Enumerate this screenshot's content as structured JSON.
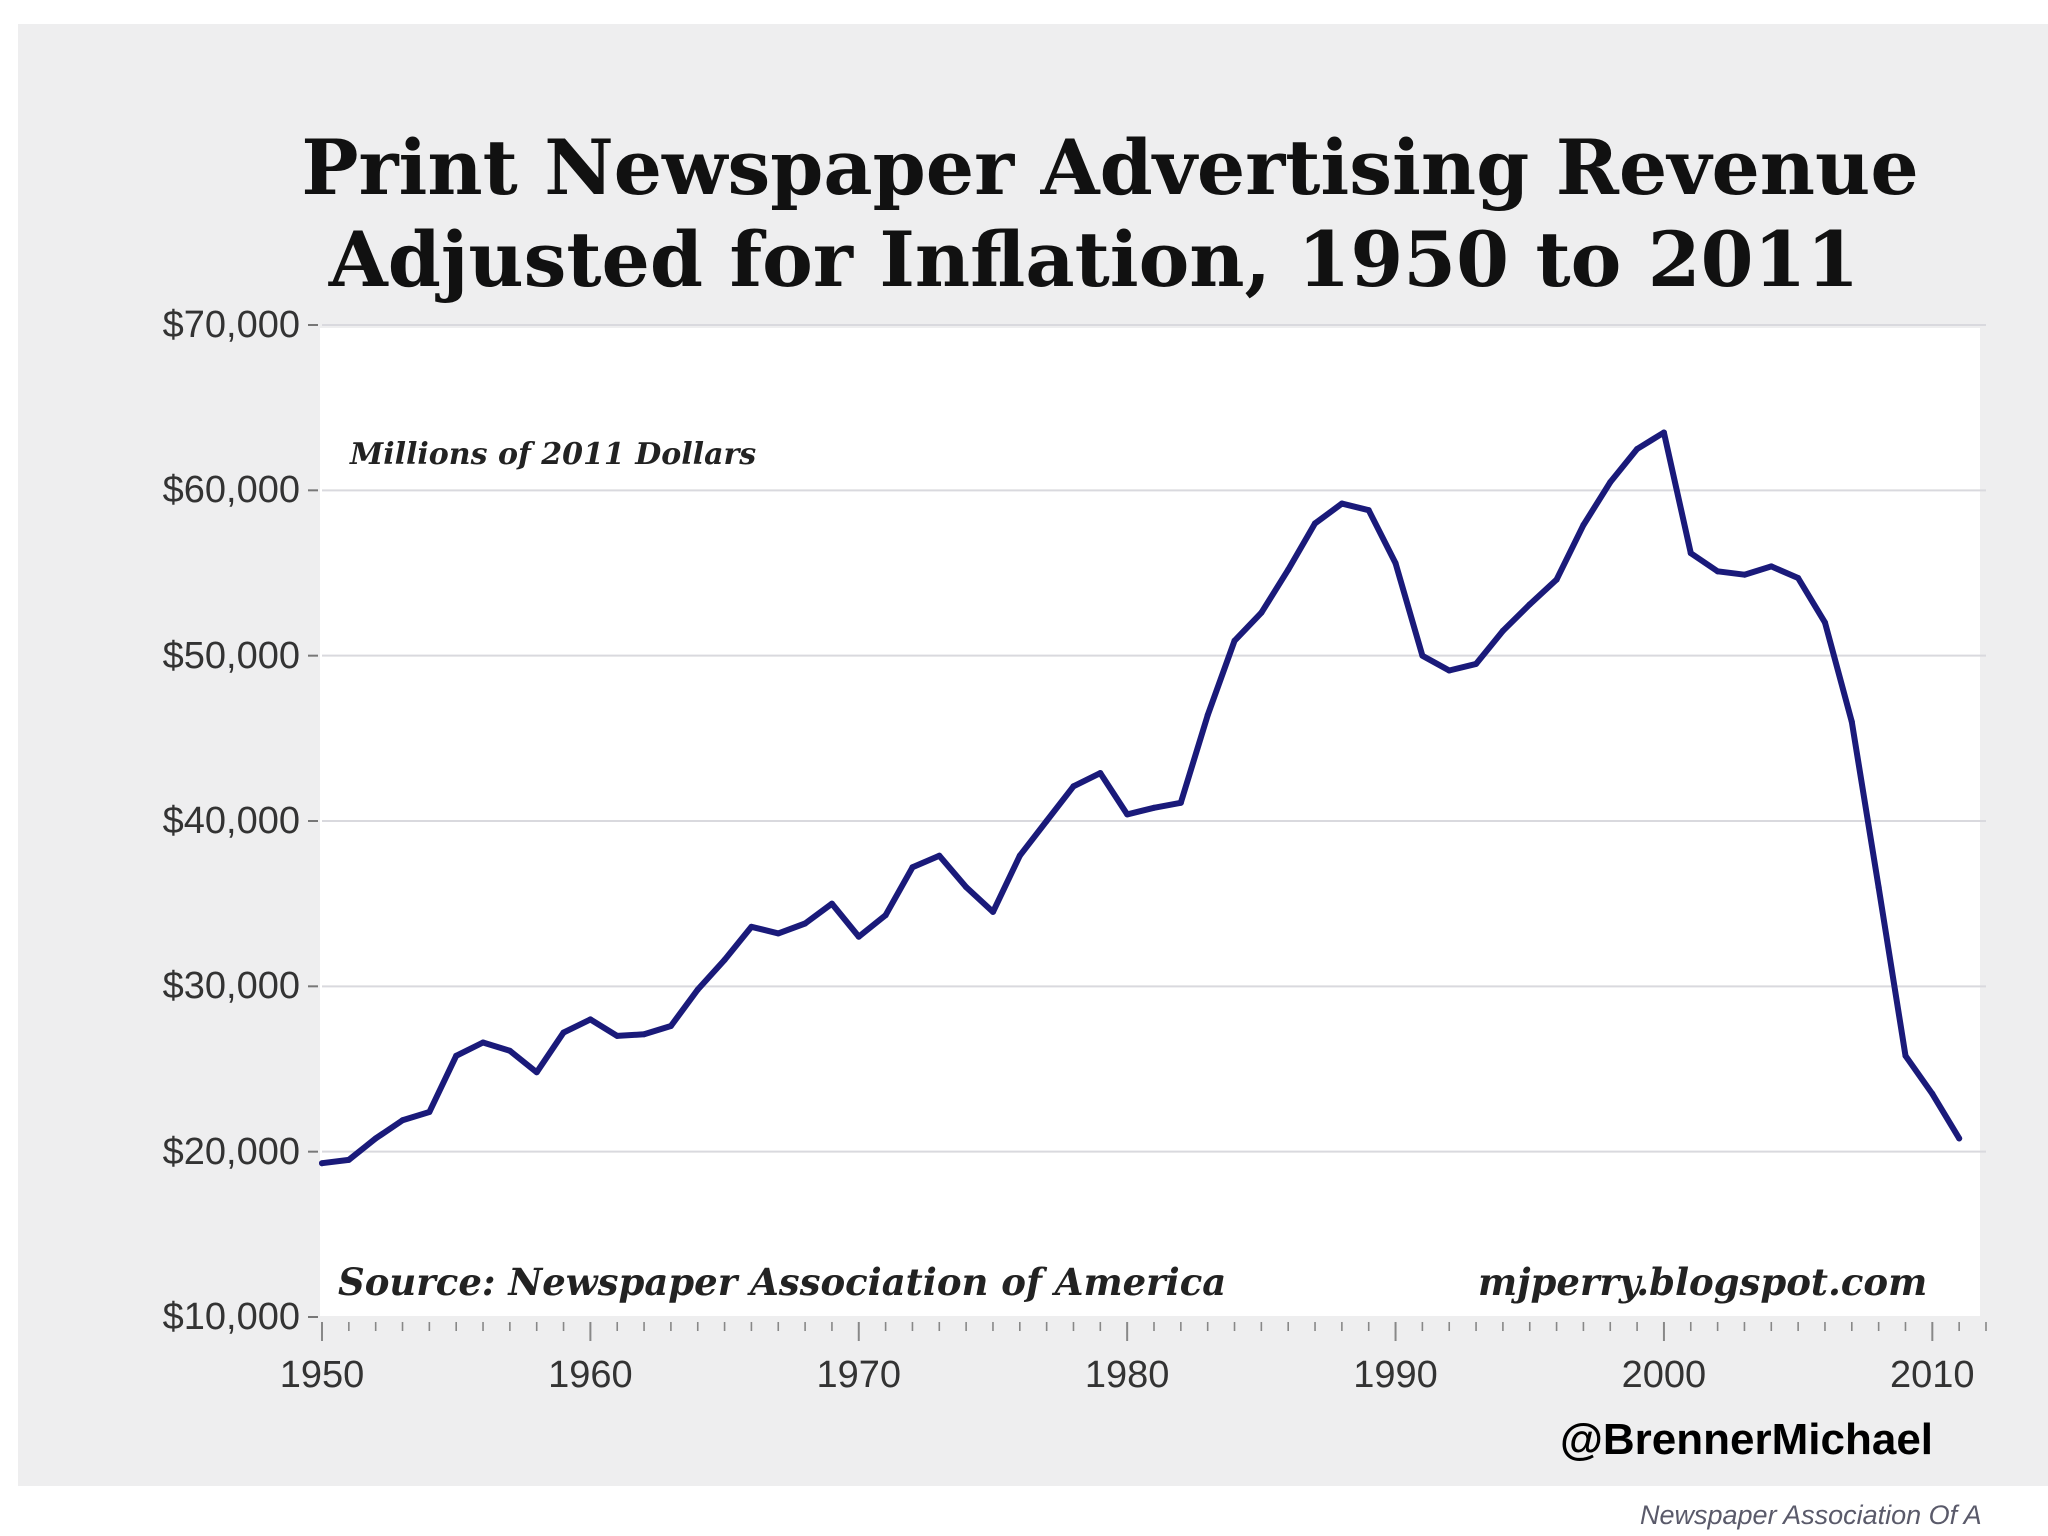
{
  "chart_data": {
    "type": "line",
    "title": "Print Newspaper Advertising Revenue",
    "subtitle": "Adjusted for Inflation, 1950 to 2011",
    "units_label": "Millions of 2011 Dollars",
    "source": "Source: Newspaper Association of America",
    "site": "mjperry.blogspot.com",
    "xlabel": "",
    "ylabel": "",
    "xlim": [
      1950,
      2012
    ],
    "ylim": [
      10000,
      70000
    ],
    "y_ticks": [
      {
        "value": 70000,
        "label": "$70,000"
      },
      {
        "value": 60000,
        "label": "$60,000"
      },
      {
        "value": 50000,
        "label": "$50,000"
      },
      {
        "value": 40000,
        "label": "$40,000"
      },
      {
        "value": 30000,
        "label": "$30,000"
      },
      {
        "value": 20000,
        "label": "$20,000"
      },
      {
        "value": 10000,
        "label": "$10,000"
      }
    ],
    "x_ticks": [
      {
        "value": 1950,
        "label": "1950"
      },
      {
        "value": 1960,
        "label": "1960"
      },
      {
        "value": 1970,
        "label": "1970"
      },
      {
        "value": 1980,
        "label": "1980"
      },
      {
        "value": 1990,
        "label": "1990"
      },
      {
        "value": 2000,
        "label": "2000"
      },
      {
        "value": 2010,
        "label": "2010"
      }
    ],
    "grid": true,
    "series": [
      {
        "name": "Print newspaper advertising revenue",
        "color": "#1a1a7a",
        "x": [
          1950,
          1951,
          1952,
          1953,
          1954,
          1955,
          1956,
          1957,
          1958,
          1959,
          1960,
          1961,
          1962,
          1963,
          1964,
          1965,
          1966,
          1967,
          1968,
          1969,
          1970,
          1971,
          1972,
          1973,
          1974,
          1975,
          1976,
          1977,
          1978,
          1979,
          1980,
          1981,
          1982,
          1983,
          1984,
          1985,
          1986,
          1987,
          1988,
          1989,
          1990,
          1991,
          1992,
          1993,
          1994,
          1995,
          1996,
          1997,
          1998,
          1999,
          2000,
          2001,
          2002,
          2003,
          2004,
          2005,
          2006,
          2007,
          2008,
          2009,
          2010,
          2011
        ],
        "values": [
          19300,
          19500,
          20800,
          21900,
          22400,
          25800,
          26600,
          26100,
          24800,
          27200,
          28000,
          27000,
          27100,
          27600,
          29800,
          31600,
          33600,
          33200,
          33800,
          35000,
          33000,
          34300,
          37200,
          37900,
          36000,
          34500,
          37900,
          40000,
          42100,
          42900,
          40400,
          40800,
          41100,
          46400,
          50900,
          52600,
          55200,
          58000,
          59200,
          58800,
          55600,
          50000,
          49100,
          49500,
          51500,
          53100,
          54600,
          57900,
          60500,
          62500,
          63500,
          56200,
          55100,
          54900,
          55400,
          54700,
          52000,
          46000,
          36000,
          25800,
          23500,
          20800
        ]
      }
    ]
  },
  "watermark_handle": "@BrennerMichael",
  "watermark_footer": "Newspaper Association Of A"
}
